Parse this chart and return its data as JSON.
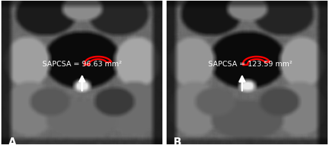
{
  "panel_A_label": "A",
  "panel_B_label": "B",
  "label_A_text": "SAPCSA = 96.63 mm²",
  "label_B_text": "SAPCSA = 123.59 mm²",
  "text_color": "white",
  "arrow_color": "white",
  "outline_color": "red",
  "figsize": [
    4.74,
    2.1
  ],
  "dpi": 100,
  "panel_label_fontsize": 11,
  "annotation_fontsize": 7.5,
  "noise_seed": 42
}
